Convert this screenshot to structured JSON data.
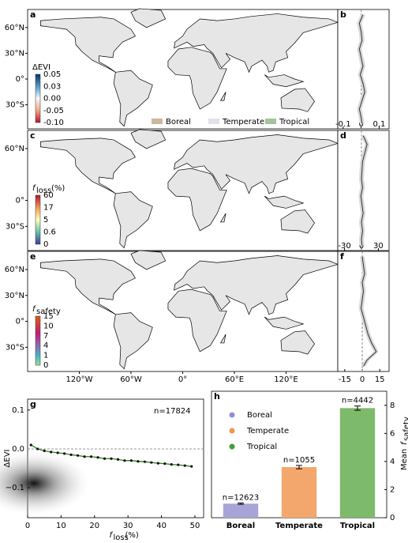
{
  "chart_data": [
    {
      "type": "map",
      "panel": "a",
      "xlim": [
        -180,
        180
      ],
      "ylim": [
        -58,
        81
      ],
      "lat_ticks": [
        {
          "value": 60,
          "label": "60°N"
        },
        {
          "value": 30,
          "label": "30°N"
        },
        {
          "value": 0,
          "label": "0°"
        },
        {
          "value": -30,
          "label": "30°S"
        }
      ],
      "colorbar": {
        "title": "ΔEVI",
        "ticks": [
          0.05,
          0.03,
          {
            "value": 0,
            "label": "0.00"
          },
          -0.05,
          {
            "value": -0.1,
            "label": "-0.10"
          }
        ]
      },
      "legend": [
        {
          "name": "Boreal",
          "color": "#cbb89d"
        },
        {
          "name": "Temperate",
          "color": "#e1e1ec"
        },
        {
          "name": "Tropical",
          "color": "#a4c49a"
        }
      ]
    },
    {
      "type": "profile",
      "panel": "b",
      "xlim": [
        -0.13,
        0.155
      ],
      "ylim": [
        -58,
        81
      ],
      "xticks": [
        -0.1,
        0,
        0.1
      ],
      "lat": [
        75,
        65,
        55,
        45,
        35,
        25,
        15,
        5,
        -5,
        -15,
        -25,
        -35,
        -45,
        -52
      ],
      "values": [
        0.01,
        -0.01,
        0,
        0.005,
        -0.01,
        0,
        0.01,
        -0.005,
        0.01,
        0.02,
        0.005,
        -0.01,
        0,
        0.005
      ]
    },
    {
      "type": "map",
      "panel": "c",
      "xlim": [
        -180,
        180
      ],
      "ylim": [
        -58,
        81
      ],
      "lat_ticks": [
        {
          "value": 60,
          "label": "60°N"
        },
        {
          "value": 0,
          "label": "0°"
        },
        {
          "value": -30,
          "label": "30°S"
        }
      ],
      "colorbar": {
        "title": "f",
        "subscript": "loss",
        "unit": "(%)",
        "ticks": [
          60,
          17,
          5,
          0.6,
          0
        ]
      }
    },
    {
      "type": "profile",
      "panel": "d",
      "xlim": [
        -42,
        49
      ],
      "ylim": [
        -58,
        81
      ],
      "xticks": [
        -30,
        0,
        30
      ],
      "lat": [
        75,
        65,
        55,
        45,
        35,
        25,
        15,
        5,
        -5,
        -15,
        -25,
        -35,
        -45,
        -52
      ],
      "values": [
        3,
        10,
        6,
        2,
        1,
        0,
        2,
        -1,
        1,
        3,
        0,
        2,
        0,
        1
      ]
    },
    {
      "type": "map",
      "panel": "e",
      "xlim": [
        -180,
        180
      ],
      "ylim": [
        -58,
        81
      ],
      "lat_ticks": [
        {
          "value": 60,
          "label": "60°N"
        },
        {
          "value": 30,
          "label": "30°N"
        },
        {
          "value": 0,
          "label": "0°"
        },
        {
          "value": -30,
          "label": "30°S"
        }
      ],
      "lon_ticks": [
        {
          "value": -120,
          "label": "120°W"
        },
        {
          "value": -60,
          "label": "60°W"
        },
        {
          "value": 0,
          "label": "0°"
        },
        {
          "value": 60,
          "label": "60°E"
        },
        {
          "value": 120,
          "label": "120°E"
        }
      ],
      "colorbar": {
        "title": "f",
        "subscript": "safety",
        "ticks": [
          15,
          10,
          7,
          4,
          1,
          0
        ]
      }
    },
    {
      "type": "profile",
      "panel": "f",
      "xlim": [
        -21,
        23
      ],
      "ylim": [
        -58,
        81
      ],
      "xticks": [
        -15,
        0,
        15
      ],
      "lat": [
        75,
        65,
        55,
        45,
        35,
        25,
        15,
        5,
        -5,
        -15,
        -25,
        -35,
        -45,
        -52
      ],
      "values": [
        0,
        1,
        2,
        0,
        1,
        0,
        -1,
        1,
        3,
        5,
        8,
        12,
        4,
        1
      ]
    },
    {
      "type": "line",
      "panel": "g",
      "color": "#2e7d1e",
      "xlim": [
        0,
        52.6
      ],
      "ylim": [
        -0.177,
        0.128
      ],
      "xticks": [
        0,
        10,
        20,
        30,
        40,
        50
      ],
      "yticks": [
        0.1,
        {
          "value": 0,
          "label": "0.0"
        },
        {
          "value": -0.1,
          "label": "−0.1"
        }
      ],
      "y_label": "ΔEVI",
      "x_label": "f",
      "x_label_sub": "loss",
      "x_label_unit": "(%)",
      "annotation": "n=17824",
      "x": [
        1,
        3,
        5,
        7,
        9,
        11,
        13,
        15,
        17,
        19,
        21,
        23,
        25,
        27,
        29,
        31,
        33,
        35,
        37,
        39,
        41,
        43,
        45,
        47,
        49
      ],
      "values": [
        0.01,
        0.0,
        -0.005,
        -0.008,
        -0.01,
        -0.012,
        -0.015,
        -0.017,
        -0.02,
        -0.02,
        -0.022,
        -0.025,
        -0.025,
        -0.027,
        -0.03,
        -0.03,
        -0.032,
        -0.033,
        -0.035,
        -0.037,
        -0.038,
        -0.04,
        -0.041,
        -0.043,
        -0.045
      ]
    },
    {
      "type": "bar",
      "panel": "h",
      "ylim": [
        0,
        9
      ],
      "yticks": [
        0,
        2,
        4,
        6,
        8
      ],
      "categories": [
        "Boreal",
        "Temperate",
        "Tropical"
      ],
      "values": [
        1.0,
        3.6,
        7.8
      ],
      "errors": [
        0.05,
        0.12,
        0.15
      ],
      "colors": [
        "#a9a4d8",
        "#f4a76c",
        "#7dba6c"
      ],
      "legend_colors": [
        "#8e8fd2",
        "#f2974f",
        "#4a9a3a"
      ],
      "annotations": [
        "n=12623",
        "n=1055",
        "n=4442"
      ],
      "y_label": "Mean",
      "y_label_f": "f",
      "y_label_sub": "safety"
    }
  ]
}
